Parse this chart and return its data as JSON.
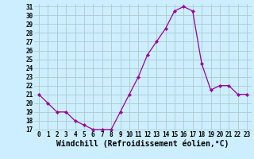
{
  "x": [
    0,
    1,
    2,
    3,
    4,
    5,
    6,
    7,
    8,
    9,
    10,
    11,
    12,
    13,
    14,
    15,
    16,
    17,
    18,
    19,
    20,
    21,
    22,
    23
  ],
  "y": [
    21,
    20,
    19,
    19,
    18,
    17.5,
    17,
    17,
    17,
    19,
    21,
    23,
    25.5,
    27,
    28.5,
    30.5,
    31,
    30.5,
    24.5,
    21.5,
    22,
    22,
    21,
    21
  ],
  "line_color": "#990099",
  "marker_color": "#990099",
  "bg_color": "#cceeff",
  "grid_color": "#aacccc",
  "xlabel": "Windchill (Refroidissement éolien,°C)",
  "ylim": [
    17,
    31
  ],
  "yticks": [
    17,
    18,
    19,
    20,
    21,
    22,
    23,
    24,
    25,
    26,
    27,
    28,
    29,
    30,
    31
  ],
  "xticks": [
    0,
    1,
    2,
    3,
    4,
    5,
    6,
    7,
    8,
    9,
    10,
    11,
    12,
    13,
    14,
    15,
    16,
    17,
    18,
    19,
    20,
    21,
    22,
    23
  ],
  "tick_fontsize": 5.5,
  "xlabel_fontsize": 7.0
}
